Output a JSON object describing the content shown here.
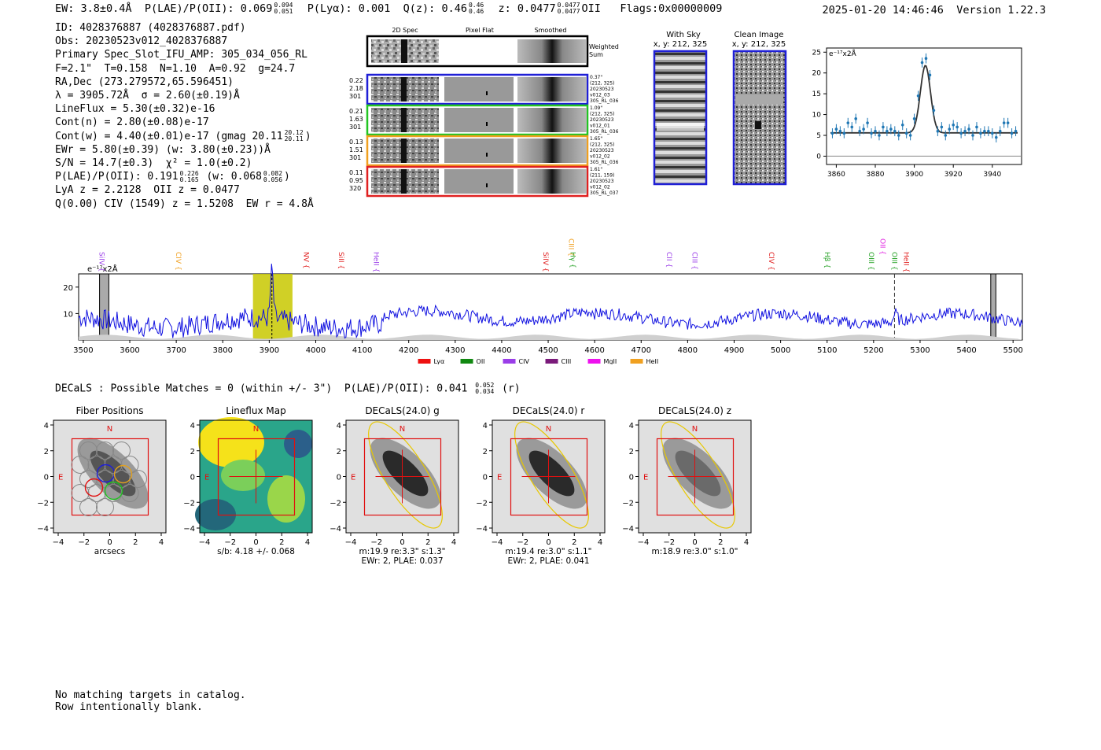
{
  "header": {
    "ew": "EW: 3.8±0.4Å",
    "plae_label": "P(LAE)/P(OII): 0.069",
    "plae_hi": "0.094",
    "plae_lo": "0.051",
    "plya": "P(Lyα): 0.001",
    "qz_label": "Q(z): 0.46",
    "qz_hi": "0.46",
    "qz_lo": "0.46",
    "z_label": "z: 0.0477",
    "z_hi": "0.0477",
    "z_lo": "0.0477",
    "z_line": "OII",
    "flags": "Flags:0x00000009",
    "timestamp": "2025-01-20 14:46:46",
    "version": "Version 1.22.3"
  },
  "info": {
    "id": "ID: 4028376887 (4028376887.pdf)",
    "obs": "Obs: 20230523v012_4028376887",
    "primary": "Primary Spec_Slot_IFU_AMP: 305_034_056_RL",
    "params": "F=2.1\"  T=0.158  N=1.10  A=0.92  g=24.7",
    "radec": "RA,Dec (273.279572,65.596451)",
    "lambda": "λ = 3905.72Å  σ = 2.60(±0.19)Å",
    "lineflux": "LineFlux = 5.30(±0.32)e-16",
    "contn": "Cont(n) = 2.80(±0.08)e-17",
    "contw": "Cont(w) = 4.40(±0.01)e-17 (gmag 20.11",
    "gmag_hi": "20.12",
    "gmag_lo": "20.11",
    "ewr": "EWr = 5.80(±0.39) (w: 3.80(±0.23))Å",
    "sn": "S/N = 14.7(±0.3)  χ² = 1.0(±0.2)",
    "plae": "P(LAE)/P(OII): 0.191",
    "plae_hi": "0.226",
    "plae_lo": "0.165",
    "plae_w": "(w: 0.068",
    "plae_w_hi": "0.082",
    "plae_w_lo": "0.056",
    "lya": "LyA z = 2.2128  OII z = 0.0477",
    "civ": "Q(0.00) CIV (1549) z = 1.5208  EW r = 4.8Å"
  },
  "stamps": {
    "col_2d": "2D Spec",
    "col_flat": "Pixel Flat",
    "col_smooth": "Smoothed",
    "weighted": "Weighted Sum",
    "rows": [
      {
        "l1": "0.22",
        "l2": "2.18",
        "l3": "301",
        "r1": "0.37\"",
        "r2": "(212, 325)",
        "r3": "20230523",
        "r4": "v012_03",
        "r5": "305_RL_036",
        "color": "#1f1fd6"
      },
      {
        "l1": "0.21",
        "l2": "1.63",
        "l3": "301",
        "r1": "1.09\"",
        "r2": "(212, 325)",
        "r3": "20230523",
        "r4": "v012_01",
        "r5": "305_RL_036",
        "color": "#22c422"
      },
      {
        "l1": "0.13",
        "l2": "1.51",
        "l3": "301",
        "r1": "1.65\"",
        "r2": "(212, 325)",
        "r3": "20230523",
        "r4": "v012_02",
        "r5": "305_RL_036",
        "color": "#f0a020"
      },
      {
        "l1": "0.11",
        "l2": "0.95",
        "l3": "320",
        "r1": "1.61\"",
        "r2": "(211, 159)",
        "r3": "20230523",
        "r4": "v012_02",
        "r5": "305_RL_037",
        "color": "#e02020"
      }
    ],
    "with_sky": "With Sky",
    "with_sky_xy": "x, y: 212, 325",
    "clean": "Clean Image",
    "clean_xy": "x, y: 212, 325"
  },
  "chart_data": [
    {
      "type": "scatter",
      "title": "",
      "ylabel": "e⁻¹⁷x2Å",
      "xlim": [
        3855,
        3955
      ],
      "ylim": [
        -2,
        26
      ],
      "xticks": [
        3860,
        3880,
        3900,
        3920,
        3940
      ],
      "yticks": [
        0,
        5,
        10,
        15,
        20,
        25
      ],
      "points_x": [
        3858,
        3860,
        3862,
        3864,
        3866,
        3868,
        3870,
        3872,
        3874,
        3876,
        3878,
        3880,
        3882,
        3884,
        3886,
        3888,
        3890,
        3892,
        3894,
        3896,
        3898,
        3900,
        3902,
        3904,
        3906,
        3908,
        3910,
        3912,
        3914,
        3916,
        3918,
        3920,
        3922,
        3924,
        3926,
        3928,
        3930,
        3932,
        3934,
        3936,
        3938,
        3940,
        3942,
        3944,
        3946,
        3948,
        3950,
        3952
      ],
      "points_y": [
        5.5,
        6.5,
        6.0,
        5.5,
        8.0,
        7.0,
        9.0,
        6.0,
        6.5,
        8.0,
        5.5,
        6.0,
        5.0,
        7.0,
        6.0,
        6.5,
        6.0,
        5.0,
        7.5,
        5.5,
        5.0,
        9.0,
        14.5,
        22.5,
        23.5,
        19.5,
        11.0,
        6.0,
        7.0,
        5.0,
        6.5,
        7.5,
        7.0,
        5.5,
        6.0,
        6.5,
        5.0,
        7.0,
        5.5,
        6.0,
        6.0,
        5.5,
        4.5,
        6.0,
        8.0,
        8.0,
        5.5,
        6.0
      ],
      "fit_continuum": 5.6,
      "fit_peak": 21.8,
      "fit_center": 3905.7,
      "fit_sigma": 2.6
    },
    {
      "type": "line",
      "ylabel": "e⁻¹⁷x2Å",
      "xlim": [
        3490,
        5520
      ],
      "ylim": [
        0,
        25
      ],
      "xticks": [
        3500,
        3600,
        3700,
        3800,
        3900,
        4000,
        4100,
        4200,
        4300,
        4400,
        4500,
        4600,
        4700,
        4800,
        4900,
        5000,
        5100,
        5200,
        5300,
        5400,
        5500
      ],
      "yticks": [
        10,
        20
      ],
      "highlight_band": [
        3865,
        3950
      ],
      "emission_line": 3905.7,
      "oii_dash": 5245,
      "line_labels": [
        {
          "name": "SiIV",
          "x": 3535,
          "color": "#9a3ee8"
        },
        {
          "name": "CIV",
          "x": 3700,
          "color": "#f0a020"
        },
        {
          "name": "NV",
          "x": 3975,
          "color": "#e02020"
        },
        {
          "name": "SiII",
          "x": 4050,
          "color": "#e02020"
        },
        {
          "name": "HeII",
          "x": 4125,
          "color": "#9a3ee8"
        },
        {
          "name": "SiIV",
          "x": 4490,
          "color": "#e02020"
        },
        {
          "name": "CIII",
          "x": 4545,
          "color": "#f0a020"
        },
        {
          "name": "Hγ",
          "x": 4548,
          "color": "#22a022"
        },
        {
          "name": "CII",
          "x": 4755,
          "color": "#9a3ee8"
        },
        {
          "name": "CIII",
          "x": 4810,
          "color": "#9a3ee8"
        },
        {
          "name": "CIV",
          "x": 4975,
          "color": "#e02020"
        },
        {
          "name": "Hβ",
          "x": 5095,
          "color": "#22a022"
        },
        {
          "name": "OII",
          "x": 5215,
          "color": "#e020e0"
        },
        {
          "name": "OIII",
          "x": 5190,
          "color": "#22a022"
        },
        {
          "name": "OIII",
          "x": 5240,
          "color": "#22a022"
        },
        {
          "name": "HeII",
          "x": 5265,
          "color": "#e02020"
        }
      ],
      "legend": [
        {
          "name": "Lyα",
          "color": "#ee1111"
        },
        {
          "name": "OII",
          "color": "#118811"
        },
        {
          "name": "CIV",
          "color": "#9a3ee8"
        },
        {
          "name": "CIII",
          "color": "#7a1a7a"
        },
        {
          "name": "MgII",
          "color": "#ee11ee"
        },
        {
          "name": "HeII",
          "color": "#f0a020"
        }
      ]
    }
  ],
  "decals": {
    "line": "DECaLS : Possible Matches = 0 (within +/- 3\")  P(LAE)/P(OII): 0.041",
    "hi": "0.052",
    "lo": "0.034",
    "band": "(r)"
  },
  "panels": [
    {
      "title": "Fiber Positions",
      "cap1": "arcsecs",
      "cap2": ""
    },
    {
      "title": "Lineflux Map",
      "cap1": "s/b: 4.18 +/- 0.068",
      "cap2": ""
    },
    {
      "title": "DECaLS(24.0) g",
      "cap1": "m:19.9  re:3.3\"  s:1.3\"",
      "cap2": "EWr: 2, PLAE: 0.037"
    },
    {
      "title": "DECaLS(24.0) r",
      "cap1": "m:19.4  re:3.0\"  s:1.1\"",
      "cap2": "EWr: 2, PLAE: 0.041"
    },
    {
      "title": "DECaLS(24.0) z",
      "cap1": "m:18.9  re:3.0\"  s:1.0\"",
      "cap2": ""
    }
  ],
  "panel_ticks": [
    "−4",
    "−2",
    "0",
    "2",
    "4"
  ],
  "compass": {
    "n": "N",
    "e": "E"
  },
  "footer": {
    "l1": "No matching targets in catalog.",
    "l2": "Row intentionally blank."
  }
}
